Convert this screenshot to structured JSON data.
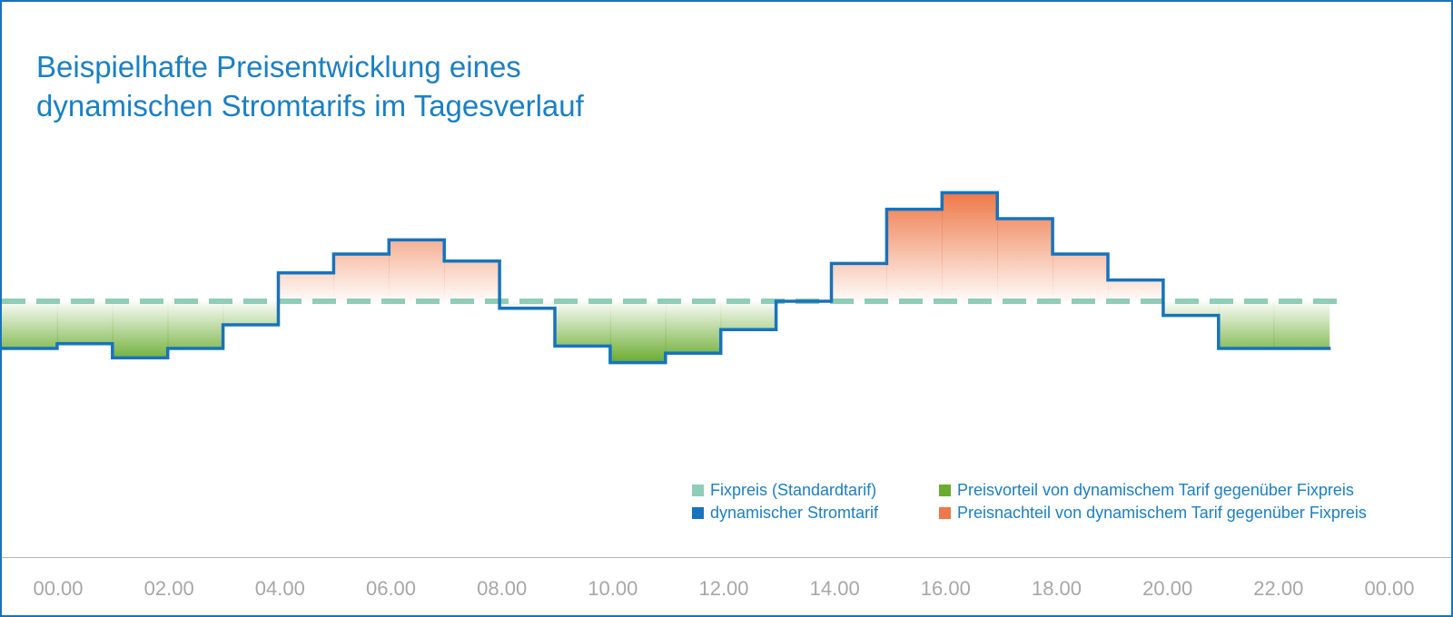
{
  "title_lines": [
    "Beispielhafte Preisentwicklung eines",
    "dynamischen Stromtarifs im Tagesverlauf"
  ],
  "legend": {
    "fixpreis": "Fixpreis (Standardtarif)",
    "dynamisch": "dynamischer Stromtarif",
    "vorteil": "Preisvorteil von dynamischem Tarif gegenüber Fixpreis",
    "nachteil": "Preisnachteil von dynamischem Tarif gegenüber Fixpreis"
  },
  "colors": {
    "title": "#1a80c4",
    "fixpreis": "#8ecdb7",
    "dynamisch": "#1673bd",
    "vorteil": "#6aac2f",
    "nachteil": "#ee7848",
    "tick_labels": "#a7a7a7"
  },
  "chart_data": {
    "type": "line",
    "step": true,
    "x_ticks": [
      "00.00",
      "02.00",
      "04.00",
      "06.00",
      "08.00",
      "10.00",
      "12.00",
      "14.00",
      "16.00",
      "18.00",
      "20.00",
      "22.00",
      "00.00"
    ],
    "series": [
      {
        "name": "Fixpreis (Standardtarif)",
        "style": "dashed",
        "values": [
          0,
          0,
          0,
          0,
          0,
          0,
          0,
          0,
          0,
          0,
          0,
          0,
          0,
          0,
          0,
          0,
          0,
          0,
          0,
          0,
          0,
          0,
          0,
          0
        ]
      },
      {
        "name": "dynamischer Stromtarif",
        "style": "step",
        "values": [
          -1.0,
          -0.9,
          -1.2,
          -1.0,
          -0.5,
          0.6,
          1.0,
          1.3,
          0.85,
          -0.15,
          -0.95,
          -1.3,
          -1.1,
          -0.6,
          0,
          0.8,
          1.95,
          2.3,
          1.75,
          1.0,
          0.45,
          -0.3,
          -1.0,
          -1.0
        ]
      }
    ],
    "grid": false,
    "legend_position": "bottom-right"
  }
}
